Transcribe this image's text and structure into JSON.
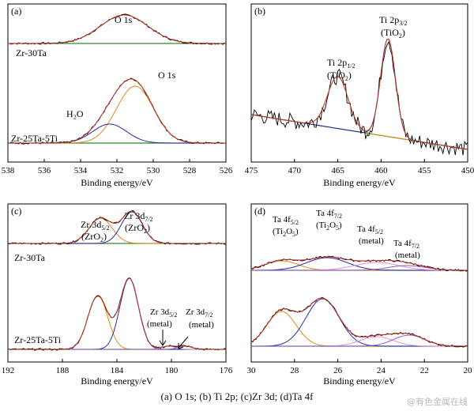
{
  "caption": "(a) O 1s; (b) Ti 2p; (c)Zr 3d; (d)Ta 4f",
  "watermark": "@有色金属在线",
  "colors": {
    "raw": "#000000",
    "fit": "#c0392b",
    "bg": "#2e8b2e",
    "comp_blue": "#2a2aa8",
    "comp_orange": "#e08a1e",
    "comp_pink": "#e58fd2",
    "comp_purple": "#8e5bc8",
    "axis": "#000000"
  },
  "chart_data": [
    {
      "type": "line",
      "panel_label": "(a)",
      "xlabel": "Binding energy/eV",
      "xlim": [
        538,
        526
      ],
      "x_ticks": [
        "538",
        "536",
        "534",
        "532",
        "530",
        "528",
        "526"
      ],
      "samples": [
        "Zr-30Ta",
        "Zr-25Ta-5Ti"
      ],
      "annotations": [
        "O 1s",
        "O 1s",
        "H₂O"
      ],
      "series": [
        {
          "sample": "Zr-30Ta",
          "offset": 0.75,
          "peaks": [
            {
              "center": 531.6,
              "fwhm": 3.1,
              "height": 0.18
            }
          ]
        },
        {
          "sample": "Zr-25Ta-5Ti",
          "offset": 0.12,
          "peaks": [
            {
              "center": 531.0,
              "fwhm": 2.4,
              "height": 0.36
            },
            {
              "center": 532.4,
              "fwhm": 2.2,
              "height": 0.12
            }
          ]
        }
      ]
    },
    {
      "type": "line",
      "panel_label": "(b)",
      "xlabel": "Binding energy/eV",
      "xlim": [
        475,
        450
      ],
      "x_ticks": [
        "475",
        "470",
        "465",
        "460",
        "455",
        "450"
      ],
      "annotations": [
        "Ti 2p",
        "1/2",
        "(TiO",
        "2",
        ")",
        "Ti 2p",
        "3/2",
        "(TiO",
        "2",
        ")"
      ],
      "peaks": [
        {
          "center": 465.0,
          "fwhm": 2.8,
          "height": 0.33
        },
        {
          "center": 459.2,
          "fwhm": 2.0,
          "height": 0.62
        }
      ],
      "background": {
        "start": 0.3,
        "end": 0.08
      }
    },
    {
      "type": "line",
      "panel_label": "(c)",
      "xlabel": "Binding energy/eV",
      "xlim": [
        192,
        176
      ],
      "x_ticks": [
        "192",
        "188",
        "184",
        "180",
        "176"
      ],
      "samples": [
        "Zr-30Ta",
        "Zr-25Ta-5Ti"
      ],
      "annotations": [
        "Zr 3d",
        "5/2",
        "(ZrO",
        "2",
        ")",
        "Zr 3d",
        "7/2",
        "(ZrO",
        "2",
        ")",
        "Zr 3d",
        "5/2",
        "(metal)",
        "Zr 3d",
        "7/2",
        "(metal)"
      ],
      "series": [
        {
          "sample": "Zr-30Ta",
          "offset": 0.75,
          "peaks": [
            {
              "center": 185.2,
              "fwhm": 2.0,
              "height": 0.16
            },
            {
              "center": 182.9,
              "fwhm": 1.8,
              "height": 0.2
            }
          ]
        },
        {
          "sample": "Zr-25Ta-5Ti",
          "offset": 0.08,
          "peaks": [
            {
              "center": 185.4,
              "fwhm": 1.7,
              "height": 0.34
            },
            {
              "center": 183.1,
              "fwhm": 1.6,
              "height": 0.45
            },
            {
              "center": 180.2,
              "fwhm": 1.2,
              "height": 0.02
            },
            {
              "center": 179.0,
              "fwhm": 1.2,
              "height": 0.02
            }
          ]
        }
      ]
    },
    {
      "type": "line",
      "panel_label": "(d)",
      "xlabel": "Binding energy/eV",
      "xlim": [
        30,
        20
      ],
      "x_ticks": [
        "30",
        "28",
        "26",
        "24",
        "22",
        "20"
      ],
      "annotations": [
        "Ta 4f",
        "5/2",
        "(Ti",
        "2",
        "O",
        "5",
        ")",
        "Ta 4f",
        "7/2",
        "(Ti",
        "2",
        "O",
        "5",
        ")",
        "Ta 4f",
        "5/2",
        "(metal)",
        "Ta 4f",
        "7/2",
        "(metal)"
      ],
      "series": [
        {
          "offset": 0.58,
          "peaks": [
            {
              "center": 28.6,
              "fwhm": 1.8,
              "height": 0.06
            },
            {
              "center": 26.5,
              "fwhm": 2.2,
              "height": 0.08
            },
            {
              "center": 24.2,
              "fwhm": 2.4,
              "height": 0.05
            },
            {
              "center": 22.8,
              "fwhm": 2.0,
              "height": 0.03
            }
          ]
        },
        {
          "offset": 0.1,
          "peaks": [
            {
              "center": 28.6,
              "fwhm": 1.6,
              "height": 0.22
            },
            {
              "center": 26.7,
              "fwhm": 1.8,
              "height": 0.3
            },
            {
              "center": 24.2,
              "fwhm": 1.8,
              "height": 0.06
            },
            {
              "center": 22.7,
              "fwhm": 1.7,
              "height": 0.07
            }
          ]
        }
      ]
    }
  ]
}
